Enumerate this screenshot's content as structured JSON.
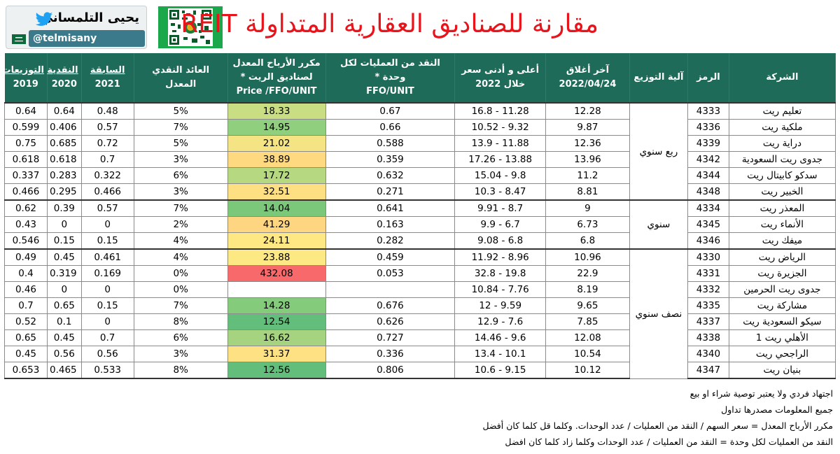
{
  "header": {
    "author_name": "يحيى التلمساني",
    "author_handle": "@telmisany",
    "title": "مقارنة للصناديق العقارية المتداولة REIT",
    "icons": [
      "twitter-bird-icon",
      "saudi-flag-icon",
      "qr-code-icon"
    ]
  },
  "table": {
    "headers": {
      "company": "الشركة",
      "code": "الرمز",
      "distribution": "آلية التوزيع",
      "last_close_line1": "آخر أغلاق",
      "last_close_line2": "2022/04/24",
      "range_line1": "أعلى و أدنى سعر",
      "range_line2": "خلال 2022",
      "ffo_line1": "النقد من العمليات لكل وحدة *",
      "ffo_line2": "FFO/UNIT",
      "pffo_line1": "مكرر الأرباح المعدل",
      "pffo_line2": "لصناديق الريت *",
      "pffo_line3": "Price /FFO/UNIT",
      "yield_line1": "العائد النقدي",
      "yield_line2": "المعدل",
      "dist_prev": "السابقة",
      "dist_cash": "النقدية",
      "dist_label": "التوزيعات",
      "y2021": "2021",
      "y2020": "2020",
      "y2019": "2019"
    },
    "groups": [
      {
        "label": "ربع سنوي",
        "rows": [
          {
            "company": "تعليم ريت",
            "code": "4333",
            "close": "12.28",
            "range": "11.28 - 16.8",
            "ffo": "0.67",
            "pffo": "18.33",
            "pffo_color": "#c9dd83",
            "yield": "5%",
            "d2021": "0.48",
            "d2020": "0.64",
            "d2019": "0.64"
          },
          {
            "company": "ملكية ريت",
            "code": "4336",
            "close": "9.87",
            "range": "9.32 - 10.52",
            "ffo": "0.66",
            "pffo": "14.95",
            "pffo_color": "#8fcf7e",
            "yield": "7%",
            "d2021": "0.57",
            "d2020": "0.406",
            "d2019": "0.599"
          },
          {
            "company": "دراية ريت",
            "code": "4339",
            "close": "12.36",
            "range": "11.88 - 13.9",
            "ffo": "0.588",
            "pffo": "21.02",
            "pffo_color": "#f4e483",
            "yield": "5%",
            "d2021": "0.72",
            "d2020": "0.685",
            "d2019": "0.75"
          },
          {
            "company": "جدوى ريت السعودية",
            "code": "4342",
            "close": "13.96",
            "range": "13.88 - 17.26",
            "ffo": "0.359",
            "pffo": "38.89",
            "pffo_color": "#fed980",
            "yield": "3%",
            "d2021": "0.7",
            "d2020": "0.618",
            "d2019": "0.618"
          },
          {
            "company": "سدكو كابيتال ريت",
            "code": "4344",
            "close": "11.2",
            "range": "9.8 - 15.04",
            "ffo": "0.632",
            "pffo": "17.72",
            "pffo_color": "#b5d880",
            "yield": "6%",
            "d2021": "0.322",
            "d2020": "0.283",
            "d2019": "0.337"
          },
          {
            "company": "الخبير ريت",
            "code": "4348",
            "close": "8.81",
            "range": "8.47 - 10.3",
            "ffo": "0.271",
            "pffo": "32.51",
            "pffo_color": "#fedf81",
            "yield": "3%",
            "d2021": "0.466",
            "d2020": "0.295",
            "d2019": "0.466"
          }
        ]
      },
      {
        "label": "سنوي",
        "rows": [
          {
            "company": "المعذر ريت",
            "code": "4334",
            "close": "9",
            "range": "8.7 - 9.91",
            "ffo": "0.641",
            "pffo": "14.04",
            "pffo_color": "#7cc87b",
            "yield": "7%",
            "d2021": "0.57",
            "d2020": "0.39",
            "d2019": "0.62"
          },
          {
            "company": "الأنماء ريت",
            "code": "4345",
            "close": "6.73",
            "range": "6.7 - 9.9",
            "ffo": "0.163",
            "pffo": "41.29",
            "pffo_color": "#fed580",
            "yield": "2%",
            "d2021": "0",
            "d2020": "0",
            "d2019": "0.43"
          },
          {
            "company": "ميفك ريت",
            "code": "4346",
            "close": "6.8",
            "range": "6.8 - 9.08",
            "ffo": "0.282",
            "pffo": "24.11",
            "pffo_color": "#fde883",
            "yield": "4%",
            "d2021": "0.15",
            "d2020": "0.15",
            "d2019": "0.546"
          }
        ]
      },
      {
        "label": "نصف سنوي",
        "rows": [
          {
            "company": "الرياض ريت",
            "code": "4330",
            "close": "10.96",
            "range": "8.96 - 11.92",
            "ffo": "0.459",
            "pffo": "23.88",
            "pffo_color": "#fce983",
            "yield": "4%",
            "d2021": "0.461",
            "d2020": "0.45",
            "d2019": "0.49"
          },
          {
            "company": "الجزيرة ريت",
            "code": "4331",
            "close": "22.9",
            "range": "19.8 - 32.8",
            "ffo": "0.053",
            "pffo": "432.08",
            "pffo_color": "#f8696b",
            "yield": "0%",
            "d2021": "0.169",
            "d2020": "0.319",
            "d2019": "0.4"
          },
          {
            "company": "جدوى ريت الحرمين",
            "code": "4332",
            "close": "8.19",
            "range": "7.76 - 10.84",
            "ffo": "",
            "pffo": "",
            "pffo_color": "#ffffff",
            "yield": "0%",
            "d2021": "0",
            "d2020": "0",
            "d2019": "0.46"
          },
          {
            "company": "مشاركة ريت",
            "code": "4335",
            "close": "9.65",
            "range": "9.59 - 12",
            "ffo": "0.676",
            "pffo": "14.28",
            "pffo_color": "#84cb7c",
            "yield": "7%",
            "d2021": "0.15",
            "d2020": "0.65",
            "d2019": "0.7"
          },
          {
            "company": "سيكو السعودية ريت",
            "code": "4337",
            "close": "7.85",
            "range": "7.6 - 12.9",
            "ffo": "0.626",
            "pffo": "12.54",
            "pffo_color": "#63be7b",
            "yield": "8%",
            "d2021": "0",
            "d2020": "0.1",
            "d2019": "0.52"
          },
          {
            "company": "الأهلي ريت 1",
            "code": "4338",
            "close": "12.08",
            "range": "9.6 - 14.46",
            "ffo": "0.727",
            "pffo": "16.62",
            "pffo_color": "#a6d37f",
            "yield": "6%",
            "d2021": "0.7",
            "d2020": "0.45",
            "d2019": "0.65"
          },
          {
            "company": "الراجحي ريت",
            "code": "4340",
            "close": "10.54",
            "range": "10.1 - 13.4",
            "ffo": "0.336",
            "pffo": "31.37",
            "pffo_color": "#fee182",
            "yield": "3%",
            "d2021": "0.56",
            "d2020": "0.56",
            "d2019": "0.45"
          },
          {
            "company": "بنيان ريت",
            "code": "4347",
            "close": "10.12",
            "range": "9.15 - 10.6",
            "ffo": "0.806",
            "pffo": "12.56",
            "pffo_color": "#63be7b",
            "yield": "8%",
            "d2021": "0.533",
            "d2020": "0.465",
            "d2019": "0.653"
          }
        ]
      }
    ]
  },
  "notes": [
    "اجتهاد فردي ولا يعتبر توصية شراء او بيع",
    "جميع المعلومات مصدرها تداول",
    "مكرر الأرباح المعدل = سعر السهم / النقد من العمليات / عدد الوحدات. وكلما قل كلما كان أفضل",
    "النقد من العمليات لكل وحدة = النقد من العمليات / عدد الوحدات وكلما زاد كلما كان افضل"
  ]
}
